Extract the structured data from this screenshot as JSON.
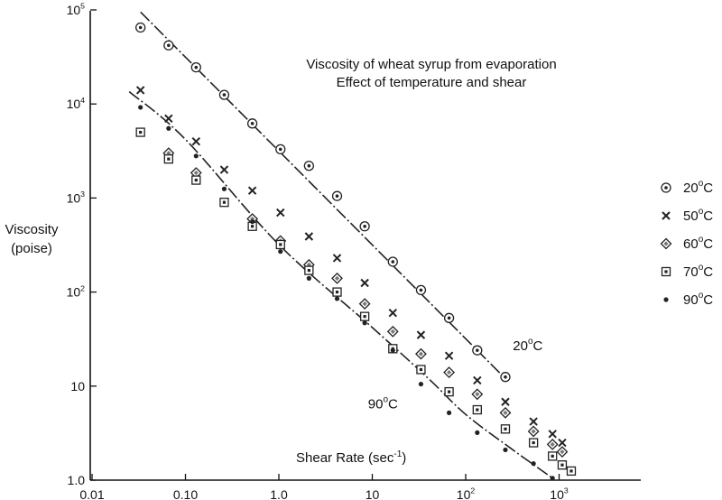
{
  "chart_data": {
    "type": "scatter",
    "title": "Viscosity of wheat syrup from evaporation",
    "subtitle": "Effect of temperature and shear",
    "xlabel": "Shear Rate (sec",
    "xlabel_sup": "-1",
    "xlabel_close": ")",
    "ylabel": "Viscosity",
    "ylabel_unit": "(poise)",
    "xscale": "log",
    "yscale": "log",
    "xlim": [
      0.01,
      2000
    ],
    "ylim": [
      1,
      100000
    ],
    "grid": false,
    "legend_position": "right",
    "x_ticks": [
      {
        "value": 0.01,
        "label": "0.01"
      },
      {
        "value": 0.1,
        "label": "0.10"
      },
      {
        "value": 1,
        "label": "1.0"
      },
      {
        "value": 10,
        "label": "10"
      },
      {
        "value": 100,
        "label": "10",
        "sup": "2"
      },
      {
        "value": 1000,
        "label": "10",
        "sup": "3"
      }
    ],
    "y_ticks": [
      {
        "value": 1,
        "label": "1.0"
      },
      {
        "value": 10,
        "label": "10"
      },
      {
        "value": 100,
        "label": "10",
        "sup": "2"
      },
      {
        "value": 1000,
        "label": "10",
        "sup": "3"
      },
      {
        "value": 10000,
        "label": "10",
        "sup": "4"
      },
      {
        "value": 100000,
        "label": "10",
        "sup": "5"
      }
    ],
    "series": [
      {
        "name": "20",
        "name_sup": "o",
        "name_unit": "C",
        "marker": "circle-dot",
        "x": [
          0.033,
          0.066,
          0.13,
          0.26,
          0.52,
          1.04,
          2.1,
          4.2,
          8.3,
          16.6,
          33.2,
          66.4,
          133,
          266
        ],
        "y": [
          65000,
          42000,
          24500,
          12500,
          6200,
          3300,
          2200,
          1050,
          500,
          210,
          105,
          53,
          24,
          12.5
        ]
      },
      {
        "name": "50",
        "name_sup": "o",
        "name_unit": "C",
        "marker": "x",
        "x": [
          0.033,
          0.066,
          0.13,
          0.26,
          0.52,
          1.04,
          2.1,
          4.2,
          8.3,
          16.6,
          33.2,
          66.4,
          133,
          266,
          532,
          850,
          1080
        ],
        "y": [
          14000,
          7000,
          4000,
          2000,
          1200,
          700,
          390,
          230,
          125,
          60,
          35,
          21,
          11.5,
          6.8,
          4.2,
          3.1,
          2.5
        ]
      },
      {
        "name": "60",
        "name_sup": "o",
        "name_unit": "C",
        "marker": "diamond-dot",
        "x": [
          0.066,
          0.13,
          0.52,
          1.04,
          2.1,
          4.2,
          8.3,
          16.6,
          33.2,
          66.4,
          133,
          266,
          532,
          850,
          1080
        ],
        "y": [
          3000,
          1850,
          600,
          350,
          195,
          140,
          75,
          38,
          22,
          14,
          8.2,
          5.2,
          3.3,
          2.4,
          2.0
        ]
      },
      {
        "name": "70",
        "name_sup": "o",
        "name_unit": "C",
        "marker": "square-dot",
        "x": [
          0.033,
          0.066,
          0.13,
          0.26,
          0.52,
          1.04,
          2.1,
          4.2,
          8.3,
          16.6,
          33.2,
          66.4,
          133,
          266,
          532,
          850,
          1080,
          1350
        ],
        "y": [
          5000,
          2600,
          1550,
          900,
          500,
          320,
          170,
          100,
          55,
          25,
          15,
          8.7,
          5.6,
          3.5,
          2.5,
          1.8,
          1.45,
          1.25
        ]
      },
      {
        "name": "90",
        "name_sup": "o",
        "name_unit": "C",
        "marker": "dot",
        "x": [
          0.033,
          0.066,
          0.13,
          0.26,
          0.52,
          1.04,
          2.1,
          4.2,
          8.3,
          16.6,
          33.2,
          66.4,
          133,
          266,
          532,
          850
        ],
        "y": [
          9200,
          5500,
          2800,
          1250,
          560,
          270,
          140,
          85,
          47,
          24,
          10.5,
          5.2,
          3.2,
          2.1,
          1.5,
          1.05
        ]
      }
    ],
    "fit_lines": [
      {
        "series": "20",
        "x": [
          0.033,
          266
        ],
        "y": [
          95000,
          12
        ]
      },
      {
        "series": "90",
        "x": [
          0.025,
          0.1,
          1,
          10,
          40,
          100,
          300,
          850
        ],
        "y": [
          13500,
          4200,
          320,
          42,
          12,
          5,
          2.2,
          1.05
        ]
      }
    ],
    "annotations": [
      {
        "text": "20",
        "sup": "o",
        "unit": "C",
        "x": 320,
        "y": 24
      },
      {
        "text": "90",
        "sup": "o",
        "unit": "C",
        "x": 9,
        "y": 5.8
      }
    ]
  }
}
